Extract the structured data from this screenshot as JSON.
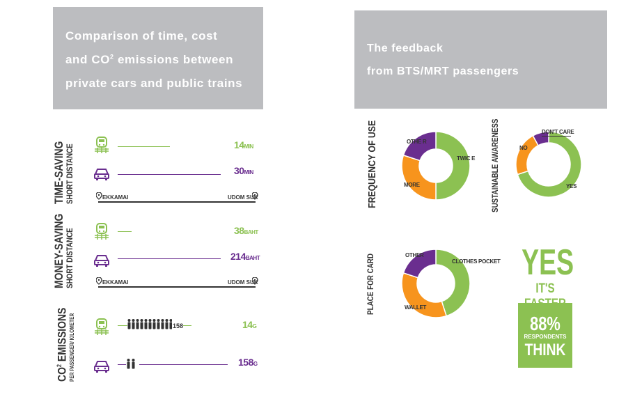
{
  "left_header": {
    "line1": "Comparison of time, cost",
    "line2_a": "and CO",
    "line2_sup": "2",
    "line2_b": " emissions between",
    "line3": "private cars and public trains"
  },
  "right_header": {
    "line1": "The feedback",
    "line2": "from BTS/MRT passengers"
  },
  "time_saving": {
    "title": "TIME-SAVING",
    "subtitle": "SHORT DISTANCE",
    "train_value": "14",
    "train_unit": "MIN",
    "car_value": "30",
    "car_unit": "MIN",
    "from": "EKKAMAI",
    "to": "UDOM SUK"
  },
  "money_saving": {
    "title": "MONEY-SAVING",
    "subtitle": "SHORT DISTANCE",
    "train_value": "38",
    "train_unit": "BAHT",
    "car_value": "214",
    "car_unit": "BAHT",
    "from": "EKKAMAI",
    "to": "UDOM SUK"
  },
  "co2": {
    "title_a": "CO",
    "title_sup": "2",
    "title_b": " EMISSIONS",
    "subtitle": "PER PASSENGER/ KILOMETER",
    "people_count": "158",
    "train_value": "14",
    "train_unit": "G",
    "car_value": "158",
    "car_unit": "G"
  },
  "donuts": {
    "frequency": {
      "title": "FREQUENCY OF USE",
      "labels": {
        "twice": "TWIC E",
        "other": "OTHE R",
        "more": "MORE"
      }
    },
    "awareness": {
      "title": "SUSTAINABLE AWARENESS",
      "labels": {
        "dont_care": "DON'T CARE",
        "no": "NO",
        "yes": "YES"
      }
    },
    "card": {
      "title": "PLACE FOR CARD",
      "labels": {
        "clothes": "CLOTHES POCKET",
        "other": "OTHER",
        "wallet": "WALLET"
      }
    }
  },
  "callout": {
    "yes": "YES",
    "faster": "IT'S FASTER",
    "percent": "88%",
    "respondents": "RESPONDENTS",
    "think": "THINK"
  },
  "colors": {
    "green": "#8cc152",
    "orange": "#f7941d",
    "purple": "#6a2e8f",
    "header_gray": "#bcbdc0"
  },
  "chart_data": [
    {
      "type": "pie",
      "categories": [
        "TWIC E",
        "MORE",
        "OTHE R"
      ],
      "values": [
        50,
        30,
        20
      ]
    },
    {
      "type": "pie",
      "categories": [
        "YES",
        "NO",
        "DON'T CARE"
      ],
      "values": [
        70,
        22,
        8
      ]
    },
    {
      "type": "pie",
      "categories": [
        "CLOTHES POCKET",
        "WALLET",
        "OTHER"
      ],
      "values": [
        45,
        35,
        20
      ]
    }
  ]
}
